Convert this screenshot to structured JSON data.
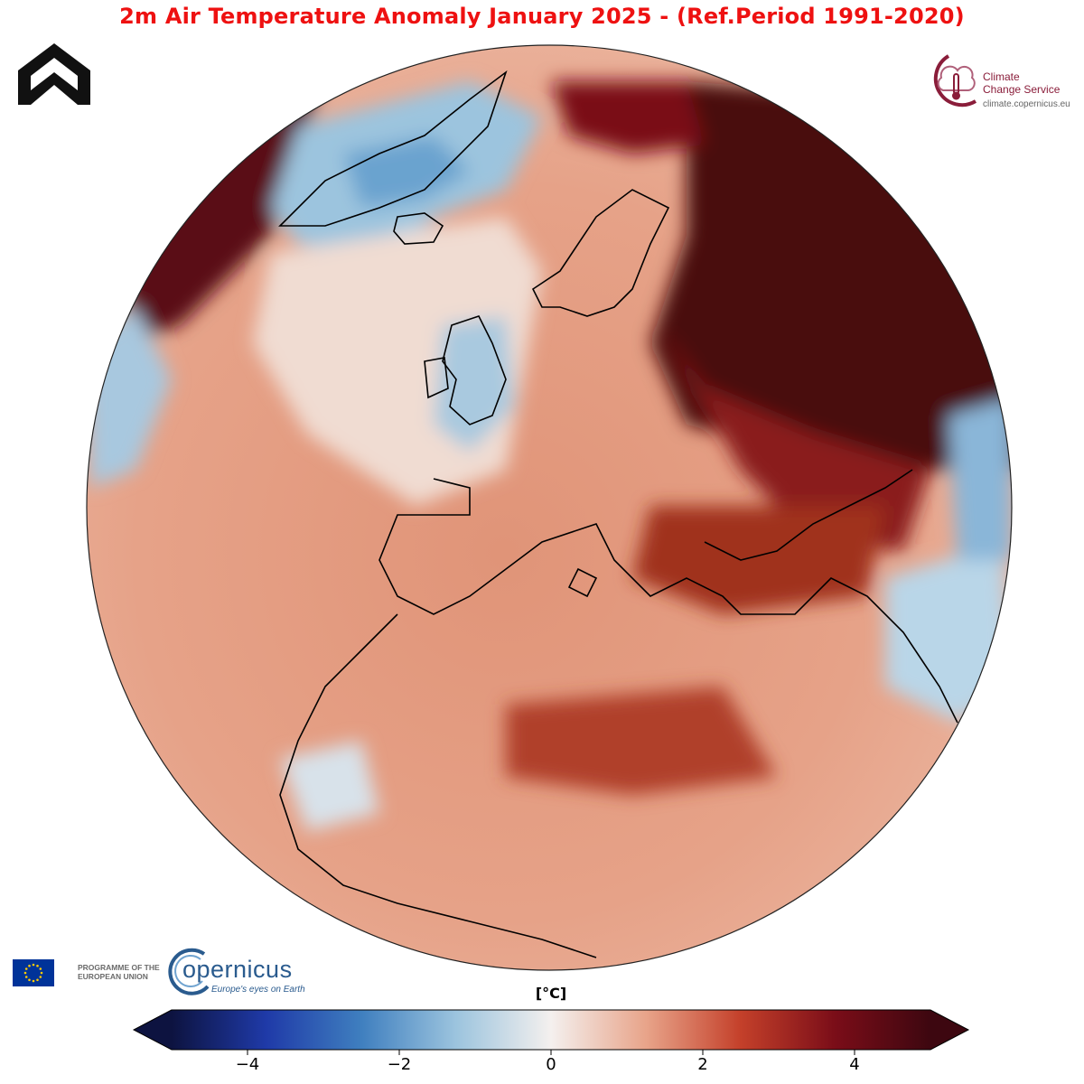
{
  "map": {
    "title": "2m Air Temperature Anomaly January 2025 - (Ref.Period 1991-2020)",
    "projection": "orthographic",
    "variable": "2m air temperature anomaly",
    "units": "[°C]",
    "colormap": {
      "vmin": -5,
      "vmax": 5,
      "extend": "both",
      "stops": [
        "#0d1340",
        "#1f3aa8",
        "#3f7fbf",
        "#9cc4de",
        "#f4f0ee",
        "#e8a48a",
        "#c4402a",
        "#7a0d18",
        "#3d0710"
      ],
      "ticks": [
        -4,
        -2,
        0,
        2,
        4
      ],
      "tick_labels": [
        "−4",
        "−2",
        "0",
        "2",
        "4"
      ]
    }
  },
  "logos": {
    "brand_icon": "house-shape-icon",
    "ccs_name": "Climate\nChange Service",
    "ccs_url": "climate.copernicus.eu",
    "eu_text": "PROGRAMME OF THE\nEUROPEAN UNION",
    "copernicus_word": "opernicus",
    "copernicus_tagline": "Europe's eyes on Earth"
  },
  "colors": {
    "title": "#ee1111",
    "ccs_brand": "#8a1d3a",
    "copernicus_blue": "#2a5b8e",
    "eu_blue": "#003399",
    "eu_star": "#ffcc00"
  }
}
